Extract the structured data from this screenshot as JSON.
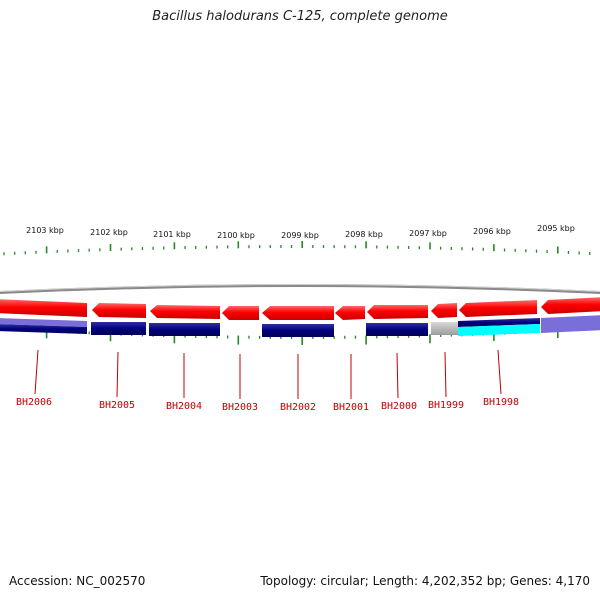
{
  "title": "Bacillus halodurans C-125, complete genome",
  "colors": {
    "forward_gene": "#ff0000",
    "reverse_gene": "#00007f",
    "backbone": "#888888",
    "ticks": "#228b22",
    "label": "#c00000",
    "light_gene": "#7a6fd8",
    "cyan_gene": "#00ffff",
    "grey_gene": "#b5b5b5"
  },
  "scale_labels": [
    "2103 kbp",
    "2102 kbp",
    "2101 kbp",
    "2100 kbp",
    "2099 kbp",
    "2098 kbp",
    "2097 kbp",
    "2096 kbp",
    "2095 kbp"
  ],
  "gene_labels": [
    "BH2006",
    "BH2005",
    "BH2004",
    "BH2003",
    "BH2002",
    "BH2001",
    "BH2000",
    "BH1999",
    "BH1998"
  ],
  "footer": {
    "accession": "Accession: NC_002570",
    "stats": "Topology: circular; Length: 4,202,352 bp; Genes: 4,170"
  }
}
